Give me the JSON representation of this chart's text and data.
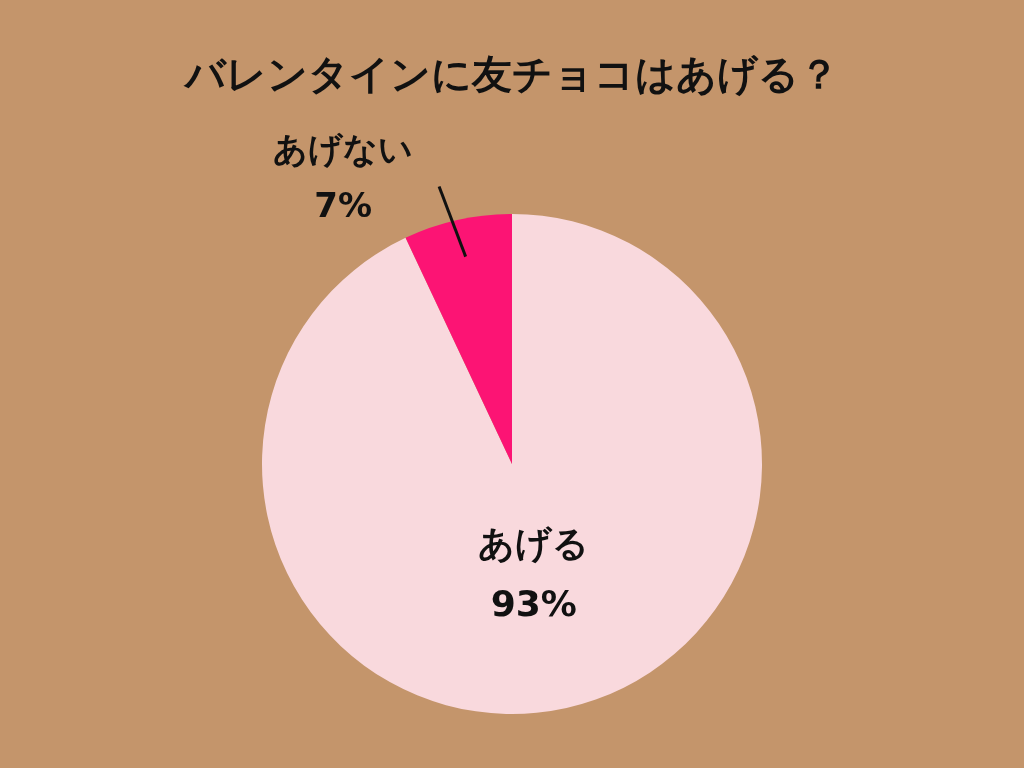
{
  "chart_data": {
    "type": "pie",
    "title": "バレンタインに友チョコはあげる？",
    "categories": [
      "あげる",
      "あげない"
    ],
    "values": [
      93,
      7
    ],
    "colors": [
      "#f9d9dd",
      "#fc1474"
    ],
    "value_labels": [
      "93%",
      "7%"
    ]
  }
}
